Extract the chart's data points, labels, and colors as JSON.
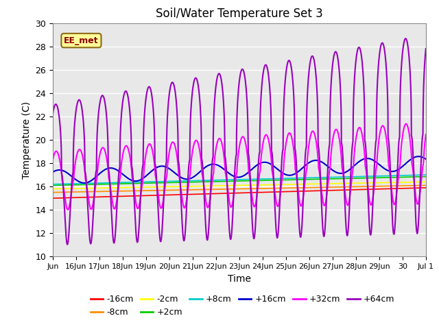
{
  "title": "Soil/Water Temperature Set 3",
  "xlabel": "Time",
  "ylabel": "Temperature (C)",
  "ylim": [
    10,
    30
  ],
  "xlim": [
    0,
    16
  ],
  "x_tick_labels": [
    "Jun",
    "16Jun",
    "17Jun",
    "18Jun",
    "19Jun",
    "20Jun",
    "21Jun",
    "22Jun",
    "23Jun",
    "24Jun",
    "25Jun",
    "26Jun",
    "27Jun",
    "28Jun",
    "29Jun",
    "30",
    "Jul 1"
  ],
  "x_tick_positions": [
    0,
    1,
    2,
    3,
    4,
    5,
    6,
    7,
    8,
    9,
    10,
    11,
    12,
    13,
    14,
    15,
    16
  ],
  "y_tick_positions": [
    10,
    12,
    14,
    16,
    18,
    20,
    22,
    24,
    26,
    28,
    30
  ],
  "annotation_text": "EE_met",
  "annotation_color": "#8B0000",
  "annotation_bg": "#FFFF99",
  "plot_bg_color": "#E8E8E8",
  "series": [
    {
      "label": "-16cm",
      "color": "#FF0000",
      "linewidth": 1.2
    },
    {
      "label": "-8cm",
      "color": "#FF8C00",
      "linewidth": 1.2
    },
    {
      "label": "-2cm",
      "color": "#FFFF00",
      "linewidth": 1.2
    },
    {
      "label": "+2cm",
      "color": "#00CC00",
      "linewidth": 1.2
    },
    {
      "label": "+8cm",
      "color": "#00CCCC",
      "linewidth": 1.2
    },
    {
      "label": "+16cm",
      "color": "#0000CC",
      "linewidth": 1.5
    },
    {
      "label": "+32cm",
      "color": "#FF00FF",
      "linewidth": 1.5
    },
    {
      "label": "+64cm",
      "color": "#9900BB",
      "linewidth": 1.5
    }
  ]
}
